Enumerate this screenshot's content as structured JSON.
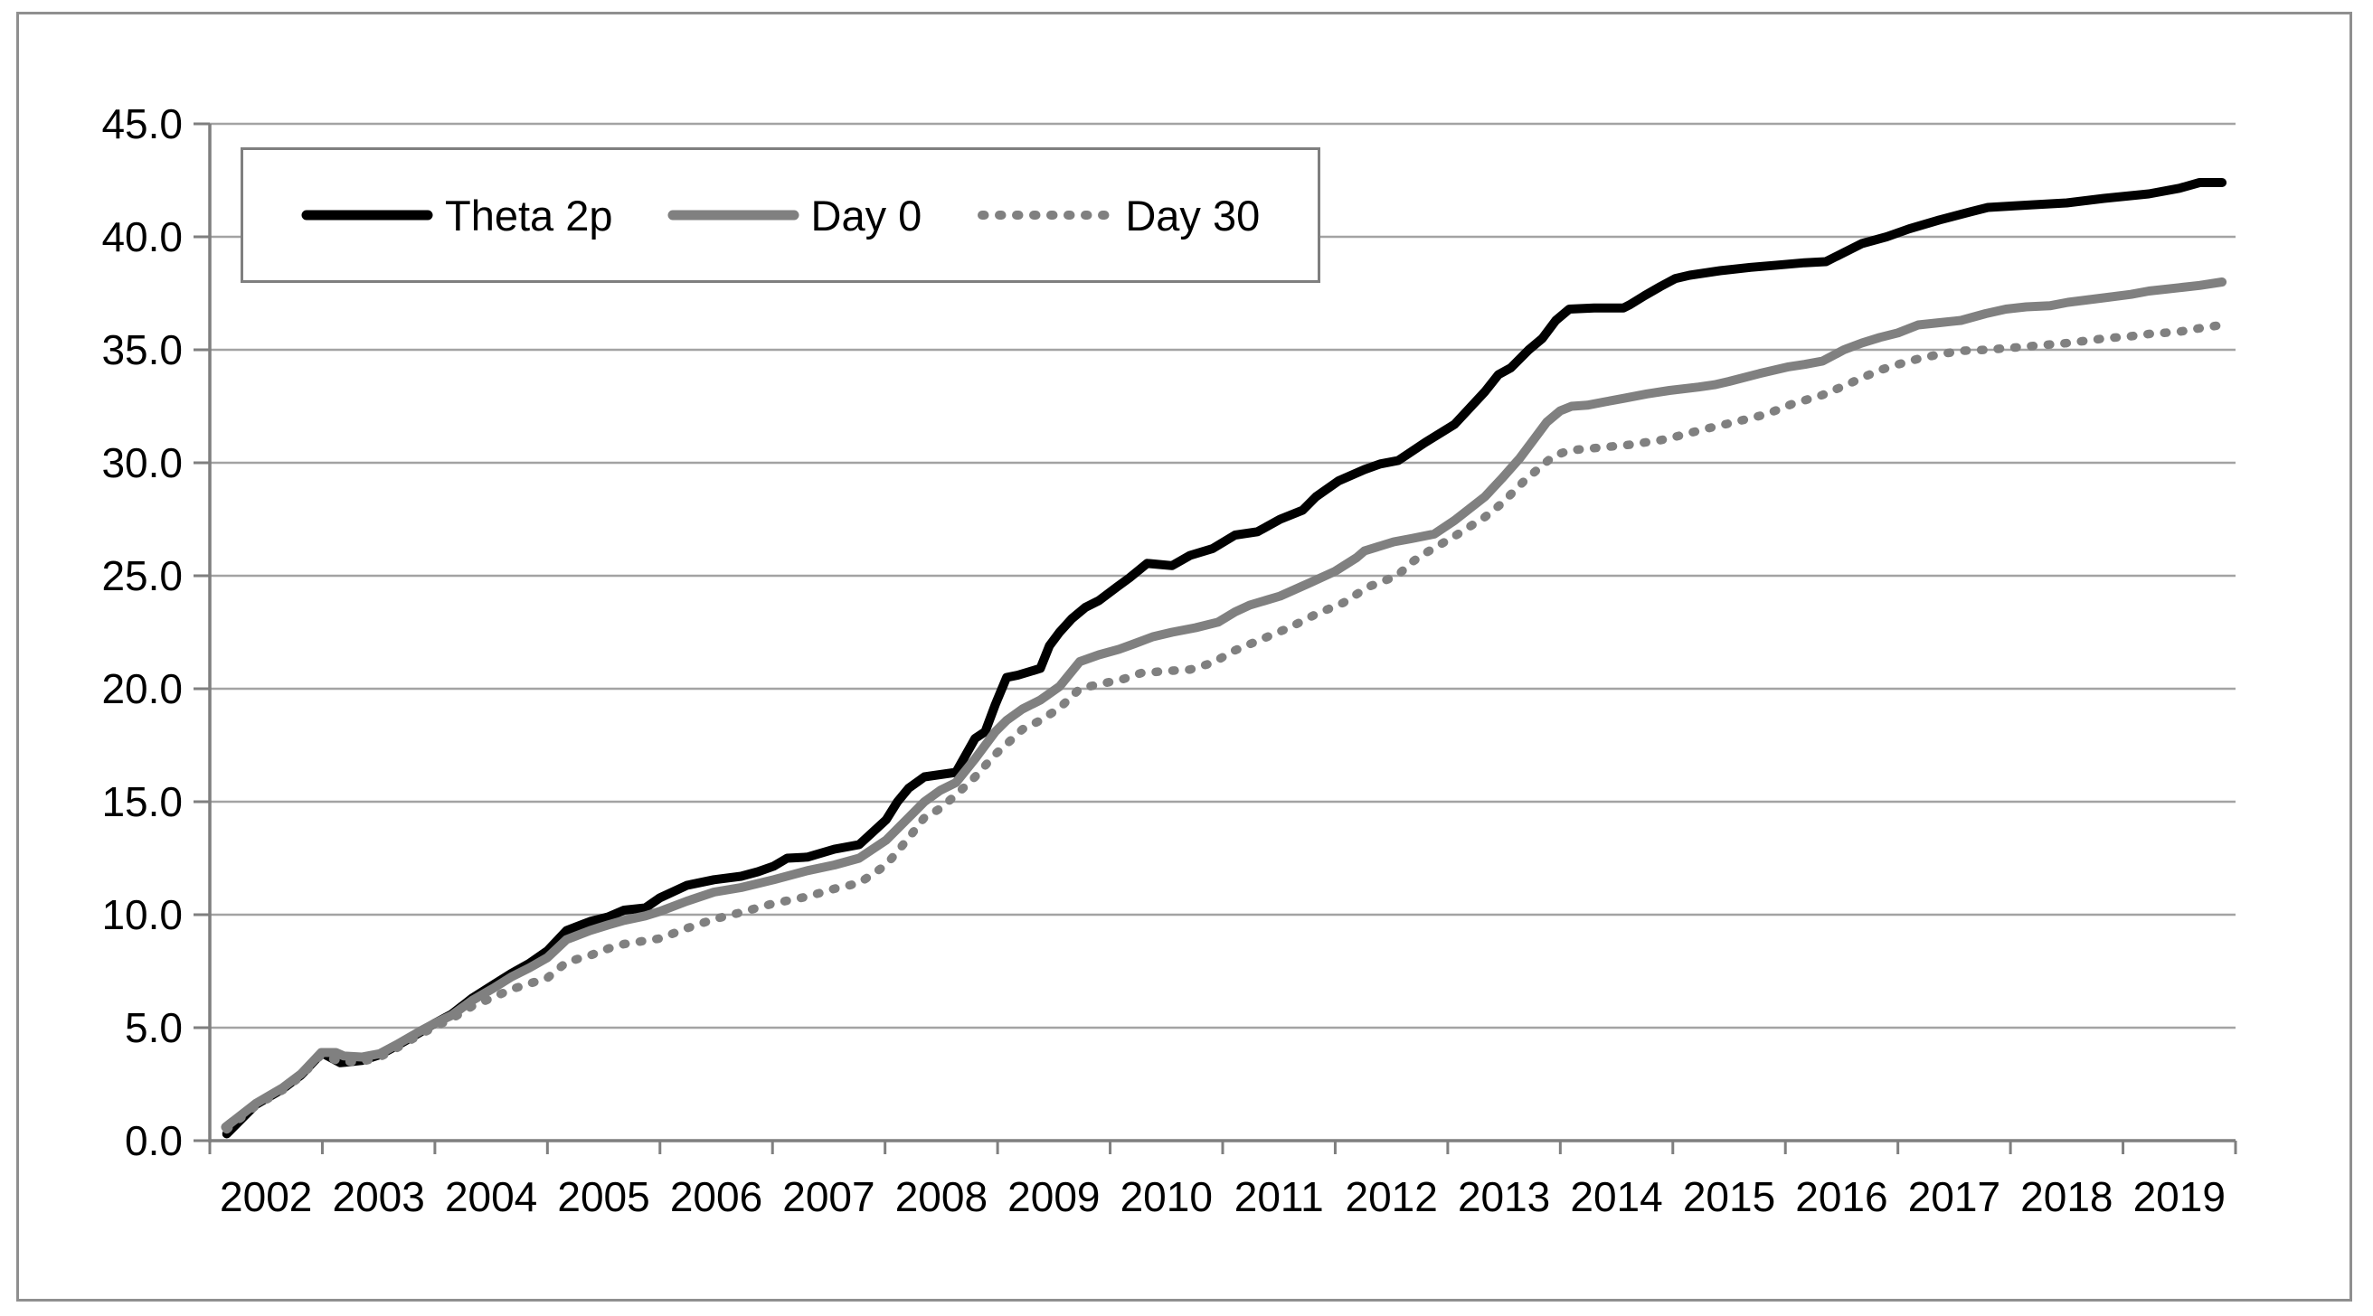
{
  "colors": {
    "series_black": "#000000",
    "series_gray": "#808080",
    "gridline": "#a3a3a3",
    "axis": "#7f7f7f",
    "legend_border": "#7f7f7f",
    "frame_border": "#8f8f8f",
    "text": "#000000",
    "background": "#ffffff"
  },
  "chart_data": {
    "type": "line",
    "title": "",
    "xlabel": "",
    "ylabel": "",
    "grid": "horizontal",
    "legend_position": "top-left-inside",
    "x_axis": {
      "min": 2002,
      "max": 2020,
      "tick_years": [
        2002,
        2003,
        2004,
        2005,
        2006,
        2007,
        2008,
        2009,
        2010,
        2011,
        2012,
        2013,
        2014,
        2015,
        2016,
        2017,
        2018,
        2019
      ],
      "tick_labels": [
        "2002",
        "2003",
        "2004",
        "2005",
        "2006",
        "2007",
        "2008",
        "2009",
        "2010",
        "2011",
        "2012",
        "2013",
        "2014",
        "2015",
        "2016",
        "2017",
        "2018",
        "2019"
      ]
    },
    "y_axis": {
      "min": 0,
      "max": 45,
      "step": 5,
      "tick_labels": [
        "0.0",
        "5.0",
        "10.0",
        "15.0",
        "20.0",
        "25.0",
        "30.0",
        "35.0",
        "40.0",
        "45.0"
      ]
    },
    "series": [
      {
        "name": "Theta 2p",
        "style": "solid",
        "color": "#000000",
        "points": [
          [
            2002.15,
            0.3
          ],
          [
            2002.41,
            1.6
          ],
          [
            2002.65,
            2.3
          ],
          [
            2002.81,
            2.9
          ],
          [
            2002.97,
            3.75
          ],
          [
            2003.01,
            3.85
          ],
          [
            2003.16,
            3.45
          ],
          [
            2003.35,
            3.55
          ],
          [
            2003.51,
            3.8
          ],
          [
            2003.66,
            4.2
          ],
          [
            2003.87,
            4.8
          ],
          [
            2004.0,
            5.2
          ],
          [
            2004.15,
            5.6
          ],
          [
            2004.33,
            6.3
          ],
          [
            2004.52,
            6.9
          ],
          [
            2004.68,
            7.4
          ],
          [
            2004.84,
            7.85
          ],
          [
            2005.0,
            8.4
          ],
          [
            2005.17,
            9.3
          ],
          [
            2005.38,
            9.7
          ],
          [
            2005.54,
            9.9
          ],
          [
            2005.68,
            10.2
          ],
          [
            2005.87,
            10.3
          ],
          [
            2006.0,
            10.75
          ],
          [
            2006.24,
            11.3
          ],
          [
            2006.48,
            11.55
          ],
          [
            2006.72,
            11.7
          ],
          [
            2006.87,
            11.9
          ],
          [
            2007.01,
            12.15
          ],
          [
            2007.13,
            12.5
          ],
          [
            2007.31,
            12.55
          ],
          [
            2007.55,
            12.9
          ],
          [
            2007.77,
            13.1
          ],
          [
            2008.01,
            14.2
          ],
          [
            2008.11,
            15.0
          ],
          [
            2008.21,
            15.6
          ],
          [
            2008.35,
            16.1
          ],
          [
            2008.49,
            16.2
          ],
          [
            2008.63,
            16.3
          ],
          [
            2008.8,
            17.8
          ],
          [
            2008.89,
            18.1
          ],
          [
            2008.98,
            19.3
          ],
          [
            2009.08,
            20.5
          ],
          [
            2009.18,
            20.6
          ],
          [
            2009.38,
            20.9
          ],
          [
            2009.46,
            21.9
          ],
          [
            2009.55,
            22.5
          ],
          [
            2009.66,
            23.1
          ],
          [
            2009.78,
            23.6
          ],
          [
            2009.9,
            23.9
          ],
          [
            2010.06,
            24.5
          ],
          [
            2010.17,
            24.9
          ],
          [
            2010.33,
            25.55
          ],
          [
            2010.55,
            25.45
          ],
          [
            2010.71,
            25.9
          ],
          [
            2010.91,
            26.2
          ],
          [
            2011.11,
            26.8
          ],
          [
            2011.31,
            26.95
          ],
          [
            2011.51,
            27.5
          ],
          [
            2011.71,
            27.9
          ],
          [
            2011.83,
            28.5
          ],
          [
            2012.03,
            29.2
          ],
          [
            2012.26,
            29.7
          ],
          [
            2012.4,
            29.95
          ],
          [
            2012.56,
            30.1
          ],
          [
            2012.8,
            30.9
          ],
          [
            2013.06,
            31.7
          ],
          [
            2013.33,
            33.15
          ],
          [
            2013.45,
            33.9
          ],
          [
            2013.56,
            34.2
          ],
          [
            2013.6,
            34.4
          ],
          [
            2013.72,
            35.0
          ],
          [
            2013.84,
            35.5
          ],
          [
            2013.96,
            36.3
          ],
          [
            2014.08,
            36.8
          ],
          [
            2014.3,
            36.85
          ],
          [
            2014.56,
            36.85
          ],
          [
            2014.62,
            37.0
          ],
          [
            2014.75,
            37.4
          ],
          [
            2014.89,
            37.8
          ],
          [
            2015.02,
            38.15
          ],
          [
            2015.15,
            38.3
          ],
          [
            2015.42,
            38.5
          ],
          [
            2015.69,
            38.65
          ],
          [
            2015.93,
            38.75
          ],
          [
            2016.17,
            38.85
          ],
          [
            2016.36,
            38.9
          ],
          [
            2016.52,
            39.3
          ],
          [
            2016.68,
            39.7
          ],
          [
            2016.9,
            40.0
          ],
          [
            2017.1,
            40.35
          ],
          [
            2017.37,
            40.75
          ],
          [
            2017.64,
            41.1
          ],
          [
            2017.8,
            41.3
          ],
          [
            2018.14,
            41.4
          ],
          [
            2018.5,
            41.5
          ],
          [
            2018.83,
            41.7
          ],
          [
            2019.23,
            41.9
          ],
          [
            2019.5,
            42.15
          ],
          [
            2019.68,
            42.4
          ],
          [
            2019.88,
            42.4
          ]
        ]
      },
      {
        "name": "Day 0",
        "style": "solid",
        "color": "#808080",
        "points": [
          [
            2002.14,
            0.6
          ],
          [
            2002.41,
            1.65
          ],
          [
            2002.65,
            2.35
          ],
          [
            2002.81,
            2.95
          ],
          [
            2002.99,
            3.9
          ],
          [
            2003.12,
            3.9
          ],
          [
            2003.19,
            3.75
          ],
          [
            2003.35,
            3.7
          ],
          [
            2003.51,
            3.85
          ],
          [
            2003.66,
            4.25
          ],
          [
            2003.87,
            4.85
          ],
          [
            2004.0,
            5.2
          ],
          [
            2004.15,
            5.55
          ],
          [
            2004.33,
            6.2
          ],
          [
            2004.52,
            6.75
          ],
          [
            2004.68,
            7.25
          ],
          [
            2004.84,
            7.65
          ],
          [
            2005.0,
            8.1
          ],
          [
            2005.17,
            8.9
          ],
          [
            2005.38,
            9.3
          ],
          [
            2005.54,
            9.55
          ],
          [
            2005.68,
            9.75
          ],
          [
            2005.87,
            9.95
          ],
          [
            2006.0,
            10.15
          ],
          [
            2006.24,
            10.6
          ],
          [
            2006.48,
            11.0
          ],
          [
            2006.72,
            11.2
          ],
          [
            2007.01,
            11.55
          ],
          [
            2007.31,
            11.95
          ],
          [
            2007.55,
            12.2
          ],
          [
            2007.77,
            12.5
          ],
          [
            2008.01,
            13.3
          ],
          [
            2008.21,
            14.3
          ],
          [
            2008.35,
            15.0
          ],
          [
            2008.49,
            15.5
          ],
          [
            2008.63,
            15.85
          ],
          [
            2008.8,
            16.9
          ],
          [
            2008.98,
            18.1
          ],
          [
            2009.08,
            18.6
          ],
          [
            2009.22,
            19.1
          ],
          [
            2009.38,
            19.5
          ],
          [
            2009.55,
            20.1
          ],
          [
            2009.73,
            21.2
          ],
          [
            2009.9,
            21.5
          ],
          [
            2010.08,
            21.75
          ],
          [
            2010.22,
            22.0
          ],
          [
            2010.38,
            22.3
          ],
          [
            2010.55,
            22.5
          ],
          [
            2010.76,
            22.7
          ],
          [
            2010.96,
            22.95
          ],
          [
            2011.11,
            23.4
          ],
          [
            2011.24,
            23.7
          ],
          [
            2011.51,
            24.1
          ],
          [
            2011.78,
            24.7
          ],
          [
            2012.0,
            25.2
          ],
          [
            2012.19,
            25.8
          ],
          [
            2012.26,
            26.1
          ],
          [
            2012.52,
            26.5
          ],
          [
            2012.68,
            26.65
          ],
          [
            2012.88,
            26.85
          ],
          [
            2013.06,
            27.45
          ],
          [
            2013.33,
            28.5
          ],
          [
            2013.48,
            29.3
          ],
          [
            2013.64,
            30.2
          ],
          [
            2013.76,
            31.0
          ],
          [
            2013.88,
            31.8
          ],
          [
            2014.0,
            32.3
          ],
          [
            2014.1,
            32.5
          ],
          [
            2014.24,
            32.55
          ],
          [
            2014.4,
            32.7
          ],
          [
            2014.56,
            32.85
          ],
          [
            2014.77,
            33.05
          ],
          [
            2014.97,
            33.2
          ],
          [
            2015.23,
            33.35
          ],
          [
            2015.37,
            33.45
          ],
          [
            2015.5,
            33.6
          ],
          [
            2015.77,
            33.95
          ],
          [
            2016.03,
            34.25
          ],
          [
            2016.17,
            34.35
          ],
          [
            2016.33,
            34.5
          ],
          [
            2016.52,
            35.0
          ],
          [
            2016.68,
            35.3
          ],
          [
            2016.84,
            35.55
          ],
          [
            2017.0,
            35.75
          ],
          [
            2017.18,
            36.1
          ],
          [
            2017.37,
            36.2
          ],
          [
            2017.56,
            36.3
          ],
          [
            2017.78,
            36.6
          ],
          [
            2017.96,
            36.8
          ],
          [
            2018.14,
            36.9
          ],
          [
            2018.35,
            36.95
          ],
          [
            2018.51,
            37.1
          ],
          [
            2018.83,
            37.3
          ],
          [
            2019.07,
            37.45
          ],
          [
            2019.23,
            37.6
          ],
          [
            2019.5,
            37.75
          ],
          [
            2019.68,
            37.85
          ],
          [
            2019.88,
            38.0
          ]
        ]
      },
      {
        "name": "Day 30",
        "style": "dotted",
        "color": "#808080",
        "points": [
          [
            2002.15,
            0.5
          ],
          [
            2002.41,
            1.55
          ],
          [
            2002.65,
            2.25
          ],
          [
            2002.81,
            2.85
          ],
          [
            2002.99,
            3.8
          ],
          [
            2003.16,
            3.5
          ],
          [
            2003.35,
            3.5
          ],
          [
            2003.51,
            3.7
          ],
          [
            2003.66,
            4.1
          ],
          [
            2003.87,
            4.7
          ],
          [
            2004.0,
            5.05
          ],
          [
            2004.15,
            5.4
          ],
          [
            2004.33,
            5.95
          ],
          [
            2004.52,
            6.35
          ],
          [
            2004.68,
            6.7
          ],
          [
            2004.84,
            6.95
          ],
          [
            2005.0,
            7.2
          ],
          [
            2005.17,
            7.9
          ],
          [
            2005.38,
            8.2
          ],
          [
            2005.54,
            8.5
          ],
          [
            2005.68,
            8.7
          ],
          [
            2005.87,
            8.85
          ],
          [
            2006.0,
            8.95
          ],
          [
            2006.24,
            9.4
          ],
          [
            2006.48,
            9.8
          ],
          [
            2006.72,
            10.1
          ],
          [
            2007.01,
            10.5
          ],
          [
            2007.31,
            10.8
          ],
          [
            2007.55,
            11.15
          ],
          [
            2007.77,
            11.4
          ],
          [
            2008.01,
            12.2
          ],
          [
            2008.21,
            13.4
          ],
          [
            2008.35,
            14.3
          ],
          [
            2008.49,
            14.7
          ],
          [
            2008.63,
            15.3
          ],
          [
            2008.8,
            16.1
          ],
          [
            2008.98,
            17.1
          ],
          [
            2009.08,
            17.55
          ],
          [
            2009.22,
            18.2
          ],
          [
            2009.38,
            18.6
          ],
          [
            2009.55,
            19.15
          ],
          [
            2009.73,
            20.0
          ],
          [
            2009.9,
            20.2
          ],
          [
            2010.1,
            20.4
          ],
          [
            2010.28,
            20.7
          ],
          [
            2010.55,
            20.8
          ],
          [
            2010.71,
            20.85
          ],
          [
            2010.91,
            21.15
          ],
          [
            2011.11,
            21.7
          ],
          [
            2011.35,
            22.2
          ],
          [
            2011.59,
            22.7
          ],
          [
            2011.83,
            23.3
          ],
          [
            2012.07,
            23.8
          ],
          [
            2012.29,
            24.5
          ],
          [
            2012.55,
            25.0
          ],
          [
            2012.68,
            25.6
          ],
          [
            2012.8,
            26.0
          ],
          [
            2013.06,
            26.75
          ],
          [
            2013.33,
            27.6
          ],
          [
            2013.48,
            28.2
          ],
          [
            2013.68,
            29.2
          ],
          [
            2013.82,
            29.8
          ],
          [
            2013.94,
            30.3
          ],
          [
            2014.08,
            30.55
          ],
          [
            2014.3,
            30.65
          ],
          [
            2014.62,
            30.8
          ],
          [
            2014.89,
            31.0
          ],
          [
            2015.02,
            31.15
          ],
          [
            2015.29,
            31.5
          ],
          [
            2015.55,
            31.8
          ],
          [
            2015.83,
            32.15
          ],
          [
            2016.06,
            32.6
          ],
          [
            2016.33,
            33.0
          ],
          [
            2016.52,
            33.4
          ],
          [
            2016.7,
            33.8
          ],
          [
            2016.84,
            34.1
          ],
          [
            2017.0,
            34.35
          ],
          [
            2017.18,
            34.6
          ],
          [
            2017.37,
            34.8
          ],
          [
            2017.56,
            34.95
          ],
          [
            2017.78,
            35.0
          ],
          [
            2018.04,
            35.1
          ],
          [
            2018.27,
            35.2
          ],
          [
            2018.51,
            35.3
          ],
          [
            2018.83,
            35.5
          ],
          [
            2019.07,
            35.6
          ],
          [
            2019.23,
            35.7
          ],
          [
            2019.5,
            35.8
          ],
          [
            2019.68,
            35.95
          ],
          [
            2019.88,
            36.1
          ]
        ]
      }
    ]
  }
}
